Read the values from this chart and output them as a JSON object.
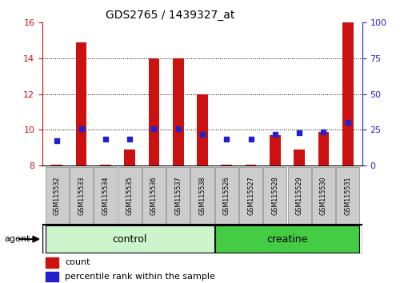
{
  "title": "GDS2765 / 1439327_at",
  "categories": [
    "GSM115532",
    "GSM115533",
    "GSM115534",
    "GSM115535",
    "GSM115536",
    "GSM115537",
    "GSM115538",
    "GSM115526",
    "GSM115527",
    "GSM115528",
    "GSM115529",
    "GSM115530",
    "GSM115531"
  ],
  "count_values": [
    8.05,
    14.9,
    8.05,
    8.9,
    14.0,
    14.0,
    12.0,
    8.05,
    8.05,
    9.7,
    8.9,
    9.9,
    16.0
  ],
  "percentile_values": [
    9.4,
    10.05,
    9.5,
    9.5,
    10.05,
    10.05,
    9.75,
    9.5,
    9.5,
    9.75,
    9.85,
    9.9,
    10.4
  ],
  "groups": [
    {
      "label": "control",
      "start": 0,
      "end": 7,
      "color": "#ccf5cc"
    },
    {
      "label": "creatine",
      "start": 7,
      "end": 13,
      "color": "#44cc44"
    }
  ],
  "ylim_left": [
    8,
    16
  ],
  "ylim_right": [
    0,
    100
  ],
  "yticks_left": [
    8,
    10,
    12,
    14,
    16
  ],
  "yticks_right": [
    0,
    25,
    50,
    75,
    100
  ],
  "bar_color": "#cc1111",
  "percentile_color": "#2222cc",
  "bar_width": 0.45,
  "left_tick_color": "#cc1111",
  "right_tick_color": "#2222cc",
  "agent_label": "agent",
  "legend_count_label": "count",
  "legend_percentile_label": "percentile rank within the sample",
  "grid_lines": [
    10,
    12,
    14
  ],
  "cat_box_color": "#cccccc",
  "cat_box_edge": "#888888"
}
